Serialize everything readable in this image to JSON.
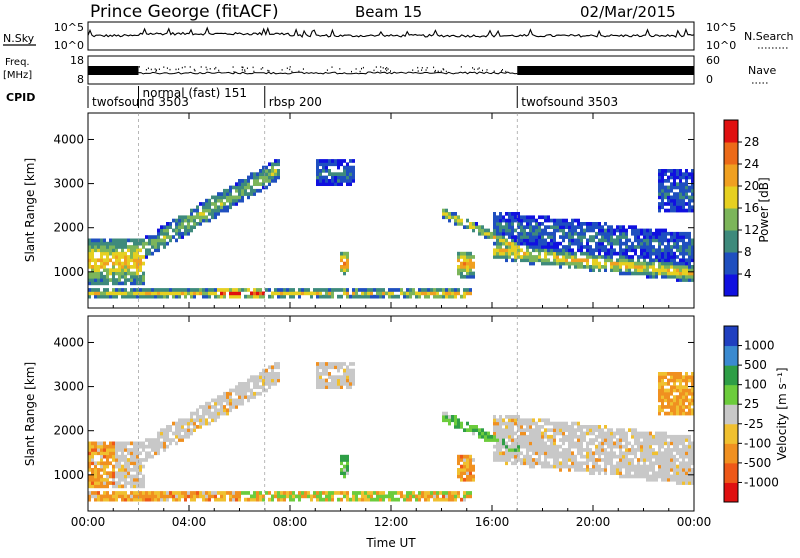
{
  "header": {
    "station": "Prince George (fitACF)",
    "beam": "Beam 15",
    "date": "02/Mar/2015"
  },
  "top_strip": {
    "nsky_label": "N.Sky",
    "nsky_ticks": [
      "10^5",
      "10^0"
    ],
    "nsearch_label": "N.Search",
    "nsearch_ticks": [
      "10^5",
      "10^0"
    ],
    "freq_label_1": "Freq.",
    "freq_label_2": "[MHz]",
    "freq_ticks": [
      "18",
      "8"
    ],
    "nave_label": "Nave",
    "nave_ticks": [
      "60",
      "0"
    ],
    "cpid_label": "CPID",
    "cpid_segments": [
      {
        "label": "twofsound 3503",
        "start_h": 0.0
      },
      {
        "label": "normal (fast) 151",
        "start_h": 2.0
      },
      {
        "label": "rbsp 200",
        "start_h": 7.0
      },
      {
        "label": "twofsound 3503",
        "start_h": 17.0
      }
    ]
  },
  "chart_data": [
    {
      "type": "heatmap",
      "title": "",
      "xlabel": "Time UT",
      "ylabel": "Slant Range [km]",
      "xlim_hours": [
        0,
        24
      ],
      "ylim_km": [
        180,
        4600
      ],
      "x_tick_labels": [
        "00:00",
        "04:00",
        "08:00",
        "12:00",
        "16:00",
        "20:00",
        "00:00"
      ],
      "y_tick_values": [
        1000,
        2000,
        3000,
        4000
      ],
      "colorbar": {
        "label": "Power [dB]",
        "tick_labels": [
          "4",
          "8",
          "12",
          "16",
          "20",
          "24",
          "28"
        ],
        "range": [
          0,
          30
        ],
        "colors": [
          "#1010e0",
          "#1f4fbf",
          "#3e8a7c",
          "#7cb55a",
          "#e6d020",
          "#f0a020",
          "#ec6a18",
          "#e01010"
        ]
      }
    },
    {
      "type": "heatmap",
      "title": "",
      "xlabel": "Time UT",
      "ylabel": "Slant Range [km]",
      "xlim_hours": [
        0,
        24
      ],
      "ylim_km": [
        180,
        4600
      ],
      "x_tick_labels": [
        "00:00",
        "04:00",
        "08:00",
        "12:00",
        "16:00",
        "20:00",
        "00:00"
      ],
      "y_tick_values": [
        1000,
        2000,
        3000,
        4000
      ],
      "colorbar": {
        "label": "Velocity [m s⁻¹]",
        "tick_labels": [
          "1000",
          "500",
          "100",
          "25",
          "-25",
          "-100",
          "-500",
          "-1000"
        ],
        "colors": [
          "#2040c0",
          "#3a8ad0",
          "#2e9e46",
          "#6ccc3c",
          "#c8c8c8",
          "#f0c030",
          "#f09020",
          "#ee5818",
          "#e01010"
        ]
      }
    }
  ]
}
